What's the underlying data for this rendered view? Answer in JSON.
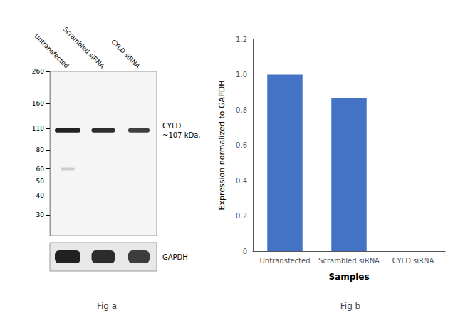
{
  "chart_data": [
    {
      "type": "blot",
      "title": "Fig a",
      "categories": [
        "Untransfected",
        "Scrambled siRNA",
        "CYLD siRNA"
      ],
      "log": "y",
      "ylim": [
        22,
        260
      ],
      "yticks": [
        260,
        160,
        110,
        80,
        60,
        50,
        40,
        30
      ],
      "grid": false,
      "panel_color": "#f5f5f5",
      "bands": [
        {
          "label": "CYLD\n~107 kDa,",
          "values": [
            107,
            107,
            107
          ],
          "color": "#111111"
        },
        {
          "values": [
            60,
            null,
            null
          ],
          "color": "#aaaaaa"
        }
      ],
      "loading_control": {
        "label": "GAPDH",
        "color": "#111111",
        "panel_color": "#e8e8e8"
      }
    },
    {
      "type": "bar",
      "title": "Fig b",
      "categories": [
        "Untransfected",
        "Scrambled siRNA",
        "CYLD siRNA"
      ],
      "values": [
        1.0,
        0.865,
        0.0
      ],
      "color": "#4472c4",
      "xlabel": "Samples",
      "ylabel": "Expression normalized to GAPDH",
      "ylim": [
        0,
        1.2
      ],
      "yticks": [
        0,
        0.2,
        0.4,
        0.6,
        0.8,
        {
          "value": 1.0,
          "label": "1.0"
        },
        1.2
      ],
      "grid": false
    }
  ]
}
